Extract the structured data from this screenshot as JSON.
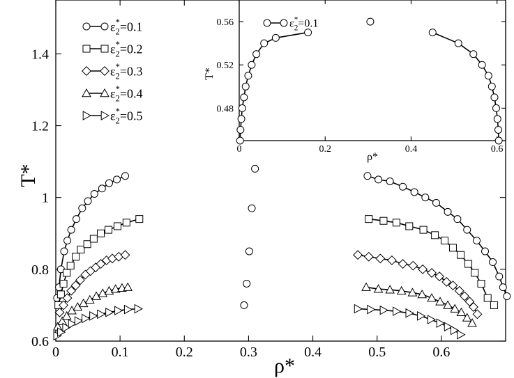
{
  "chart_data": [
    {
      "type": "line",
      "xlabel": "ρ*",
      "ylabel": "T*",
      "xlim": [
        0,
        0.7
      ],
      "ylim": [
        0.6,
        1.55
      ],
      "xticks": [
        0,
        0.1,
        0.2,
        0.3,
        0.4,
        0.5,
        0.6
      ],
      "xtick_labels": [
        "0",
        "0.1",
        "0.2",
        "0.3",
        "0.4",
        "0.5",
        "0.6"
      ],
      "yticks": [
        0.6,
        0.8,
        1.0,
        1.2,
        1.4
      ],
      "ytick_labels": [
        "0.6",
        "0.8",
        "1",
        "1.2",
        "1.4"
      ],
      "legend_position": "top-left",
      "grid": false,
      "series": [
        {
          "name": "ε*2=0.1",
          "legend_main": "ε",
          "legend_sup": "*",
          "legend_sub": "2",
          "legend_value": "=0.1",
          "marker": "circle",
          "left": [
            [
              0.002,
              0.72
            ],
            [
              0.005,
              0.75
            ],
            [
              0.008,
              0.8
            ],
            [
              0.013,
              0.85
            ],
            [
              0.018,
              0.88
            ],
            [
              0.024,
              0.91
            ],
            [
              0.032,
              0.94
            ],
            [
              0.041,
              0.97
            ],
            [
              0.05,
              0.99
            ],
            [
              0.06,
              1.01
            ],
            [
              0.072,
              1.025
            ],
            [
              0.083,
              1.04
            ],
            [
              0.095,
              1.05
            ],
            [
              0.108,
              1.06
            ]
          ],
          "critical": [
            [
              0.293,
              0.7
            ],
            [
              0.297,
              0.76
            ],
            [
              0.301,
              0.85
            ],
            [
              0.305,
              0.97
            ],
            [
              0.31,
              1.08
            ]
          ],
          "right": [
            [
              0.485,
              1.06
            ],
            [
              0.502,
              1.05
            ],
            [
              0.52,
              1.045
            ],
            [
              0.54,
              1.03
            ],
            [
              0.558,
              1.015
            ],
            [
              0.575,
              1.0
            ],
            [
              0.592,
              0.985
            ],
            [
              0.61,
              0.96
            ],
            [
              0.625,
              0.94
            ],
            [
              0.64,
              0.91
            ],
            [
              0.655,
              0.88
            ],
            [
              0.668,
              0.85
            ],
            [
              0.68,
              0.82
            ],
            [
              0.69,
              0.78
            ],
            [
              0.696,
              0.75
            ],
            [
              0.702,
              0.725
            ]
          ]
        },
        {
          "name": "ε*2=0.2",
          "legend_main": "ε",
          "legend_sup": "*",
          "legend_sub": "2",
          "legend_value": "=0.2",
          "marker": "square",
          "left": [
            [
              0.004,
              0.7
            ],
            [
              0.008,
              0.73
            ],
            [
              0.012,
              0.76
            ],
            [
              0.017,
              0.79
            ],
            [
              0.023,
              0.81
            ],
            [
              0.031,
              0.835
            ],
            [
              0.039,
              0.855
            ],
            [
              0.049,
              0.87
            ],
            [
              0.059,
              0.885
            ],
            [
              0.07,
              0.9
            ],
            [
              0.082,
              0.91
            ],
            [
              0.096,
              0.92
            ],
            [
              0.11,
              0.93
            ],
            [
              0.13,
              0.94
            ]
          ],
          "right": [
            [
              0.487,
              0.94
            ],
            [
              0.51,
              0.935
            ],
            [
              0.53,
              0.93
            ],
            [
              0.55,
              0.92
            ],
            [
              0.572,
              0.91
            ],
            [
              0.59,
              0.895
            ],
            [
              0.605,
              0.88
            ],
            [
              0.618,
              0.86
            ],
            [
              0.63,
              0.84
            ],
            [
              0.642,
              0.815
            ],
            [
              0.652,
              0.79
            ],
            [
              0.662,
              0.76
            ],
            [
              0.672,
              0.72
            ],
            [
              0.682,
              0.7
            ]
          ]
        },
        {
          "name": "ε*2=0.3",
          "legend_main": "ε",
          "legend_sup": "*",
          "legend_sub": "2",
          "legend_value": "=0.3",
          "marker": "diamond",
          "left": [
            [
              0.006,
              0.68
            ],
            [
              0.012,
              0.7
            ],
            [
              0.018,
              0.72
            ],
            [
              0.024,
              0.74
            ],
            [
              0.031,
              0.755
            ],
            [
              0.038,
              0.77
            ],
            [
              0.046,
              0.785
            ],
            [
              0.054,
              0.795
            ],
            [
              0.062,
              0.805
            ],
            [
              0.07,
              0.815
            ],
            [
              0.079,
              0.825
            ],
            [
              0.088,
              0.83
            ],
            [
              0.098,
              0.835
            ],
            [
              0.108,
              0.84
            ]
          ],
          "right": [
            [
              0.47,
              0.84
            ],
            [
              0.487,
              0.835
            ],
            [
              0.505,
              0.83
            ],
            [
              0.523,
              0.825
            ],
            [
              0.54,
              0.815
            ],
            [
              0.556,
              0.81
            ],
            [
              0.571,
              0.8
            ],
            [
              0.585,
              0.79
            ],
            [
              0.597,
              0.78
            ],
            [
              0.608,
              0.765
            ],
            [
              0.618,
              0.755
            ],
            [
              0.628,
              0.74
            ],
            [
              0.636,
              0.725
            ],
            [
              0.644,
              0.71
            ],
            [
              0.65,
              0.695
            ],
            [
              0.656,
              0.675
            ]
          ]
        },
        {
          "name": "ε*2=0.4",
          "legend_main": "ε",
          "legend_sup": "*",
          "legend_sub": "2",
          "legend_value": "=0.4",
          "marker": "triangle-up",
          "left": [
            [
              0.003,
              0.64
            ],
            [
              0.01,
              0.655
            ],
            [
              0.017,
              0.67
            ],
            [
              0.025,
              0.685
            ],
            [
              0.034,
              0.695
            ],
            [
              0.043,
              0.705
            ],
            [
              0.053,
              0.715
            ],
            [
              0.063,
              0.725
            ],
            [
              0.073,
              0.733
            ],
            [
              0.083,
              0.74
            ],
            [
              0.093,
              0.745
            ],
            [
              0.103,
              0.748
            ],
            [
              0.112,
              0.75
            ]
          ],
          "right": [
            [
              0.483,
              0.75
            ],
            [
              0.502,
              0.745
            ],
            [
              0.52,
              0.743
            ],
            [
              0.538,
              0.74
            ],
            [
              0.555,
              0.735
            ],
            [
              0.57,
              0.73
            ],
            [
              0.585,
              0.72
            ],
            [
              0.598,
              0.71
            ],
            [
              0.61,
              0.7
            ],
            [
              0.621,
              0.69
            ],
            [
              0.631,
              0.68
            ],
            [
              0.64,
              0.665
            ],
            [
              0.648,
              0.65
            ]
          ]
        },
        {
          "name": "ε*2=0.5",
          "legend_main": "ε",
          "legend_sup": "*",
          "legend_sub": "2",
          "legend_value": "=0.5",
          "marker": "triangle-right",
          "left": [
            [
              0.002,
              0.615
            ],
            [
              0.008,
              0.625
            ],
            [
              0.016,
              0.638
            ],
            [
              0.025,
              0.648
            ],
            [
              0.035,
              0.656
            ],
            [
              0.046,
              0.663
            ],
            [
              0.058,
              0.67
            ],
            [
              0.07,
              0.675
            ],
            [
              0.083,
              0.68
            ],
            [
              0.097,
              0.685
            ],
            [
              0.112,
              0.688
            ],
            [
              0.128,
              0.69
            ]
          ],
          "right": [
            [
              0.47,
              0.69
            ],
            [
              0.49,
              0.688
            ],
            [
              0.51,
              0.686
            ],
            [
              0.53,
              0.683
            ],
            [
              0.55,
              0.678
            ],
            [
              0.568,
              0.67
            ],
            [
              0.584,
              0.66
            ],
            [
              0.598,
              0.65
            ],
            [
              0.61,
              0.64
            ],
            [
              0.62,
              0.63
            ],
            [
              0.63,
              0.618
            ]
          ]
        }
      ]
    },
    {
      "type": "line",
      "xlabel": "ρ*",
      "ylabel": "T*",
      "xlim": [
        0,
        0.62
      ],
      "ylim": [
        0.45,
        0.58
      ],
      "xticks": [
        0,
        0.2,
        0.4,
        0.6
      ],
      "xtick_labels": [
        "0",
        "0.2",
        "0.4",
        "0.6"
      ],
      "yticks": [
        0.48,
        0.52,
        0.56
      ],
      "ytick_labels": [
        "0.48",
        "0.52",
        "0.56"
      ],
      "legend_position": "top",
      "grid": false,
      "series": [
        {
          "name": "ε*2=0.1",
          "legend_main": "ε",
          "legend_sup": "*",
          "legend_sub": "2",
          "legend_value": "=0.1",
          "marker": "circle",
          "left": [
            [
              0.002,
              0.45
            ],
            [
              0.003,
              0.46
            ],
            [
              0.005,
              0.47
            ],
            [
              0.007,
              0.48
            ],
            [
              0.011,
              0.49
            ],
            [
              0.015,
              0.5
            ],
            [
              0.021,
              0.51
            ],
            [
              0.029,
              0.52
            ],
            [
              0.04,
              0.53
            ],
            [
              0.058,
              0.54
            ],
            [
              0.085,
              0.545
            ],
            [
              0.16,
              0.55
            ]
          ],
          "critical": [
            [
              0.305,
              0.56
            ]
          ],
          "right": [
            [
              0.45,
              0.55
            ],
            [
              0.51,
              0.54
            ],
            [
              0.545,
              0.53
            ],
            [
              0.565,
              0.52
            ],
            [
              0.58,
              0.51
            ],
            [
              0.588,
              0.5
            ],
            [
              0.594,
              0.49
            ],
            [
              0.598,
              0.48
            ],
            [
              0.601,
              0.47
            ],
            [
              0.603,
              0.46
            ],
            [
              0.604,
              0.45
            ]
          ]
        }
      ]
    }
  ]
}
